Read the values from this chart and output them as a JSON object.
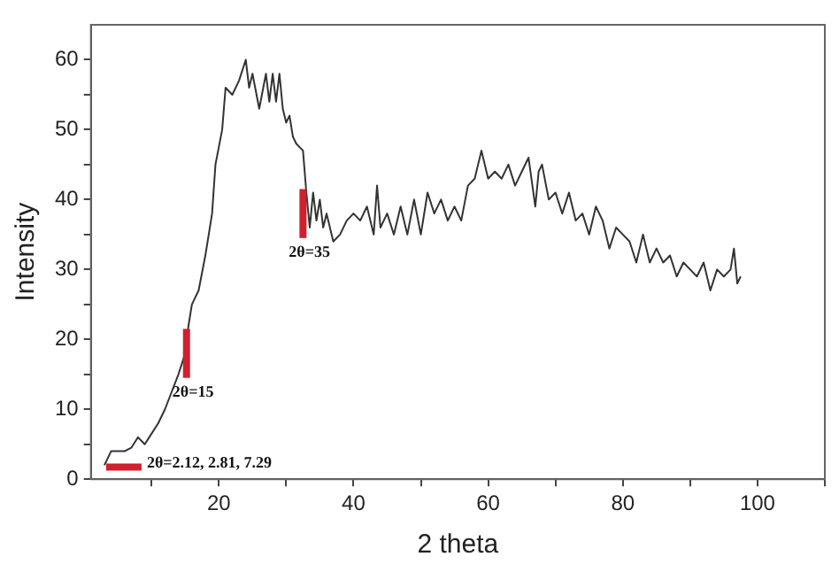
{
  "chart_data": {
    "type": "line",
    "xlabel": "2 theta",
    "ylabel": "Intensity",
    "xlim": [
      1,
      110
    ],
    "ylim": [
      0,
      65
    ],
    "xticks": [
      {
        "value": 10,
        "label": null
      },
      20,
      {
        "value": 30,
        "label": null
      },
      40,
      {
        "value": 50,
        "label": null
      },
      60,
      {
        "value": 70,
        "label": null
      },
      80,
      {
        "value": 90,
        "label": null
      },
      100,
      {
        "value": 110,
        "label": null
      }
    ],
    "yticks": [
      0,
      {
        "value": 5,
        "label": null
      },
      10,
      {
        "value": 15,
        "label": null
      },
      20,
      {
        "value": 25,
        "label": null
      },
      30,
      {
        "value": 35,
        "label": null
      },
      40,
      {
        "value": 45,
        "label": null
      },
      50,
      {
        "value": 55,
        "label": null
      },
      60
    ],
    "grid": false,
    "legend": false,
    "marker": "none",
    "line_style": "solid",
    "series": [
      {
        "color": "#333333",
        "x": [
          3,
          4,
          5,
          6,
          7,
          8,
          9,
          10,
          11,
          12,
          13,
          14,
          15,
          15.5,
          16,
          17,
          18,
          19,
          19.5,
          20.5,
          21,
          22,
          23,
          24,
          24.5,
          25,
          26,
          27,
          27.5,
          28,
          28.5,
          29,
          29.5,
          30,
          30.5,
          31,
          31.5,
          32.5,
          33,
          33.5,
          34,
          34.5,
          35,
          35.5,
          36,
          37,
          38,
          39,
          40,
          41,
          42,
          43,
          43.5,
          44,
          45,
          46,
          47,
          48,
          49,
          50,
          51,
          52,
          53,
          54,
          55,
          56,
          57,
          58,
          59,
          60,
          61,
          62,
          63,
          64,
          65,
          66,
          67,
          67.5,
          68,
          69,
          70,
          71,
          72,
          73,
          74,
          75,
          76,
          77,
          78,
          79,
          80,
          81,
          82,
          83,
          84,
          85,
          86,
          87,
          88,
          89,
          90,
          91,
          92,
          93,
          94,
          95,
          96,
          96.5,
          97,
          97.5
        ],
        "values": [
          2,
          4,
          4,
          4,
          4.5,
          6,
          5,
          6.5,
          8,
          10,
          12.5,
          15,
          18,
          22,
          25,
          27,
          32,
          38,
          45,
          50,
          56,
          55,
          57,
          60,
          56,
          58,
          53,
          58,
          54,
          58,
          54,
          58,
          53,
          51,
          52,
          49,
          48,
          47,
          41,
          36,
          41,
          37,
          40,
          36,
          38,
          34,
          35,
          37,
          38,
          37,
          39,
          35,
          42,
          36,
          38,
          35,
          39,
          35,
          40,
          35,
          41,
          38,
          40,
          37,
          39,
          37,
          42,
          43,
          47,
          43,
          44,
          43,
          45,
          42,
          44,
          46,
          39,
          44,
          45,
          40,
          41,
          38,
          41,
          37,
          38,
          35,
          39,
          37,
          33,
          36,
          35,
          34,
          31,
          35,
          31,
          33,
          31,
          32,
          29,
          31,
          30,
          29,
          31,
          27,
          30,
          29,
          30,
          33,
          28,
          29
        ]
      }
    ],
    "annotations": [
      {
        "text": "2θ=2.12, 2.81, 7.29",
        "x": 3,
        "y": 2
      },
      {
        "text": "2θ=15",
        "x": 15.2,
        "y": 18
      },
      {
        "text": "2θ=35",
        "x": 32.5,
        "y": 38
      }
    ]
  }
}
